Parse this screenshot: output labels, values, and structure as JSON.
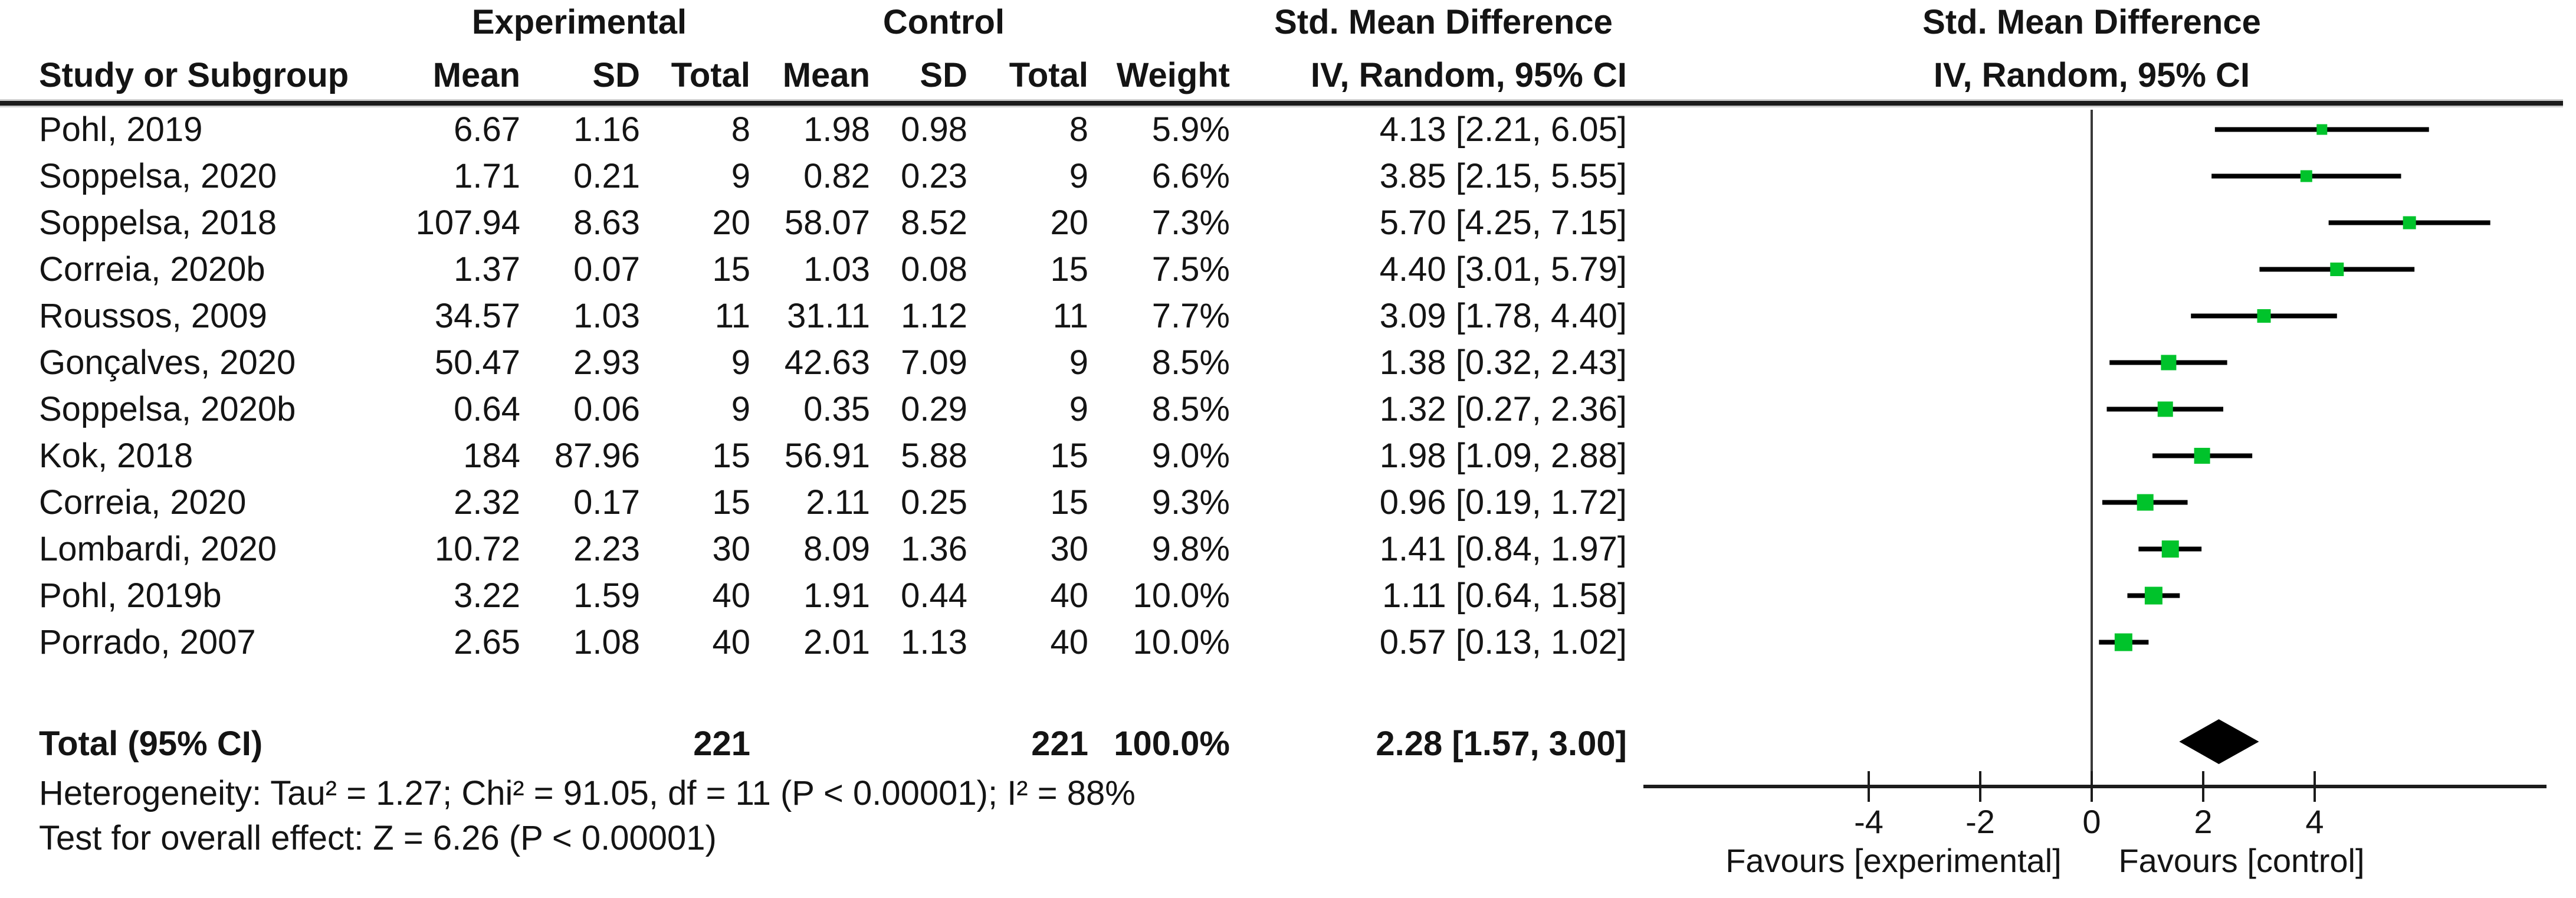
{
  "figure": {
    "groups": {
      "experimental": "Experimental",
      "control": "Control",
      "smd": "Std. Mean Difference"
    },
    "columns": {
      "study": "Study or Subgroup",
      "mean": "Mean",
      "sd": "SD",
      "total": "Total",
      "weight": "Weight",
      "ci": "IV, Random, 95% CI"
    },
    "plot_header_line1": "Std. Mean Difference",
    "plot_header_line2": "IV, Random, 95% CI",
    "total_row": {
      "label": "Total (95% CI)",
      "exp_total": "221",
      "ctl_total": "221",
      "weight": "100.0%",
      "ci_text": "2.28 [1.57, 3.00]"
    },
    "heterogeneity": "Heterogeneity: Tau² = 1.27; Chi² = 91.05, df = 11 (P < 0.00001); I² = 88%",
    "overall_effect": "Test for overall effect: Z = 6.26 (P < 0.00001)"
  },
  "chart_data": {
    "type": "scatter",
    "subtype": "forest-plot",
    "effect_measure": "Std. Mean Difference, IV, Random, 95% CI",
    "x_axis": {
      "ticks": [
        -4,
        -2,
        0,
        2,
        4
      ],
      "range": [
        -8.1,
        8.1
      ],
      "zero_line": 0
    },
    "favours_left": "Favours [experimental]",
    "favours_right": "Favours [control]",
    "marker_color": "#00C32B",
    "summary_color": "#000000",
    "studies": [
      {
        "name": "Pohl, 2019",
        "mean_e": "6.67",
        "sd_e": "1.16",
        "n_e": "8",
        "mean_c": "1.98",
        "sd_c": "0.98",
        "n_c": "8",
        "weight": "5.9%",
        "weight_pct": 5.9,
        "ci_text": "4.13 [2.21, 6.05]",
        "effect": 4.13,
        "lo": 2.21,
        "hi": 6.05
      },
      {
        "name": "Soppelsa, 2020",
        "mean_e": "1.71",
        "sd_e": "0.21",
        "n_e": "9",
        "mean_c": "0.82",
        "sd_c": "0.23",
        "n_c": "9",
        "weight": "6.6%",
        "weight_pct": 6.6,
        "ci_text": "3.85 [2.15, 5.55]",
        "effect": 3.85,
        "lo": 2.15,
        "hi": 5.55
      },
      {
        "name": "Soppelsa, 2018",
        "mean_e": "107.94",
        "sd_e": "8.63",
        "n_e": "20",
        "mean_c": "58.07",
        "sd_c": "8.52",
        "n_c": "20",
        "weight": "7.3%",
        "weight_pct": 7.3,
        "ci_text": "5.70 [4.25, 7.15]",
        "effect": 5.7,
        "lo": 4.25,
        "hi": 7.15
      },
      {
        "name": "Correia, 2020b",
        "mean_e": "1.37",
        "sd_e": "0.07",
        "n_e": "15",
        "mean_c": "1.03",
        "sd_c": "0.08",
        "n_c": "15",
        "weight": "7.5%",
        "weight_pct": 7.5,
        "ci_text": "4.40 [3.01, 5.79]",
        "effect": 4.4,
        "lo": 3.01,
        "hi": 5.79
      },
      {
        "name": "Roussos, 2009",
        "mean_e": "34.57",
        "sd_e": "1.03",
        "n_e": "11",
        "mean_c": "31.11",
        "sd_c": "1.12",
        "n_c": "11",
        "weight": "7.7%",
        "weight_pct": 7.7,
        "ci_text": "3.09 [1.78, 4.40]",
        "effect": 3.09,
        "lo": 1.78,
        "hi": 4.4
      },
      {
        "name": "Gonçalves, 2020",
        "mean_e": "50.47",
        "sd_e": "2.93",
        "n_e": "9",
        "mean_c": "42.63",
        "sd_c": "7.09",
        "n_c": "9",
        "weight": "8.5%",
        "weight_pct": 8.5,
        "ci_text": "1.38 [0.32, 2.43]",
        "effect": 1.38,
        "lo": 0.32,
        "hi": 2.43
      },
      {
        "name": "Soppelsa, 2020b",
        "mean_e": "0.64",
        "sd_e": "0.06",
        "n_e": "9",
        "mean_c": "0.35",
        "sd_c": "0.29",
        "n_c": "9",
        "weight": "8.5%",
        "weight_pct": 8.5,
        "ci_text": "1.32 [0.27, 2.36]",
        "effect": 1.32,
        "lo": 0.27,
        "hi": 2.36
      },
      {
        "name": "Kok, 2018",
        "mean_e": "184",
        "sd_e": "87.96",
        "n_e": "15",
        "mean_c": "56.91",
        "sd_c": "5.88",
        "n_c": "15",
        "weight": "9.0%",
        "weight_pct": 9.0,
        "ci_text": "1.98 [1.09, 2.88]",
        "effect": 1.98,
        "lo": 1.09,
        "hi": 2.88
      },
      {
        "name": "Correia, 2020",
        "mean_e": "2.32",
        "sd_e": "0.17",
        "n_e": "15",
        "mean_c": "2.11",
        "sd_c": "0.25",
        "n_c": "15",
        "weight": "9.3%",
        "weight_pct": 9.3,
        "ci_text": "0.96 [0.19, 1.72]",
        "effect": 0.96,
        "lo": 0.19,
        "hi": 1.72
      },
      {
        "name": "Lombardi, 2020",
        "mean_e": "10.72",
        "sd_e": "2.23",
        "n_e": "30",
        "mean_c": "8.09",
        "sd_c": "1.36",
        "n_c": "30",
        "weight": "9.8%",
        "weight_pct": 9.8,
        "ci_text": "1.41 [0.84, 1.97]",
        "effect": 1.41,
        "lo": 0.84,
        "hi": 1.97
      },
      {
        "name": "Pohl, 2019b",
        "mean_e": "3.22",
        "sd_e": "1.59",
        "n_e": "40",
        "mean_c": "1.91",
        "sd_c": "0.44",
        "n_c": "40",
        "weight": "10.0%",
        "weight_pct": 10.0,
        "ci_text": "1.11 [0.64, 1.58]",
        "effect": 1.11,
        "lo": 0.64,
        "hi": 1.58
      },
      {
        "name": "Porrado, 2007",
        "mean_e": "2.65",
        "sd_e": "1.08",
        "n_e": "40",
        "mean_c": "2.01",
        "sd_c": "1.13",
        "n_c": "40",
        "weight": "10.0%",
        "weight_pct": 10.0,
        "ci_text": "0.57 [0.13, 1.02]",
        "effect": 0.57,
        "lo": 0.13,
        "hi": 1.02
      }
    ],
    "summary": {
      "label": "Total (95% CI)",
      "effect": 2.28,
      "lo": 1.57,
      "hi": 3.0
    }
  }
}
